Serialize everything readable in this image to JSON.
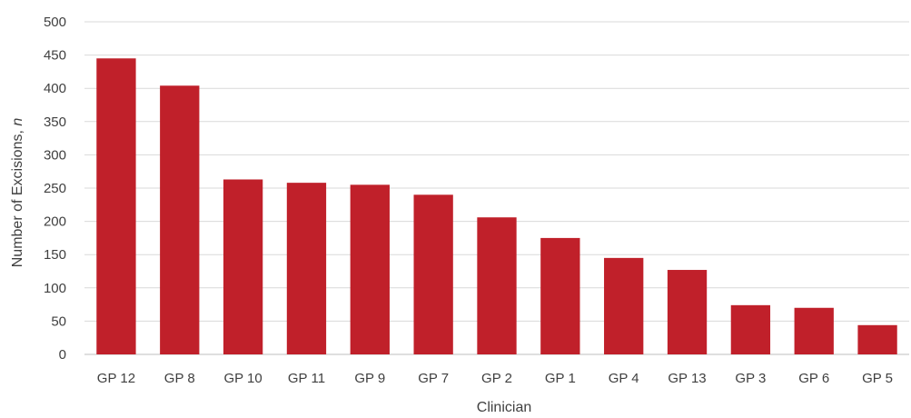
{
  "chart_data": {
    "type": "bar",
    "categories": [
      "GP 12",
      "GP 8",
      "GP 10",
      "GP 11",
      "GP 9",
      "GP 7",
      "GP 2",
      "GP 1",
      "GP 4",
      "GP 13",
      "GP 3",
      "GP 6",
      "GP 5"
    ],
    "values": [
      445,
      404,
      263,
      258,
      255,
      240,
      206,
      175,
      145,
      127,
      74,
      70,
      44
    ],
    "xlabel": "Clinician",
    "ylabel": "Number of Excisions, ",
    "ylabel_italic": "n",
    "ylim": [
      0,
      500
    ],
    "yticks": [
      0,
      50,
      100,
      150,
      200,
      250,
      300,
      350,
      400,
      450,
      500
    ],
    "grid": true,
    "legend": "none",
    "colors": {
      "bar": "#c0202a"
    }
  }
}
